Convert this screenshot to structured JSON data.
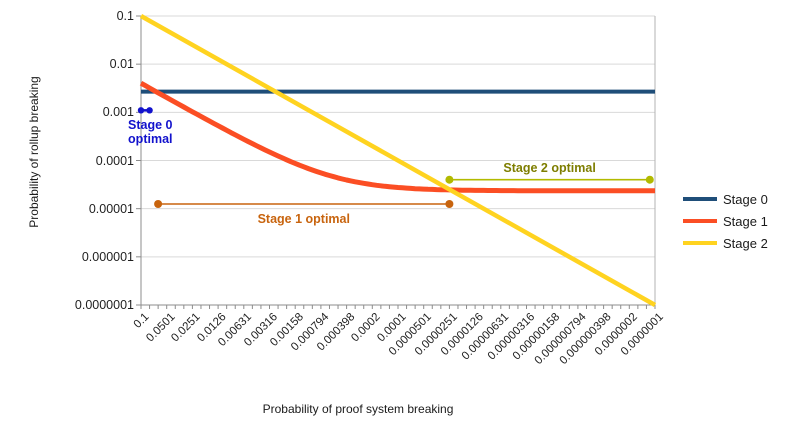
{
  "chart_data": {
    "type": "line",
    "x_scale": "log",
    "y_scale": "log",
    "grid": "horizontal",
    "legend_position": "right-middle",
    "x_axis": {
      "title": "Probability of proof system breaking",
      "range": [
        0.1,
        1e-07
      ],
      "tick_labels": [
        "0.1",
        "0.0501",
        "0.0251",
        "0.0126",
        "0.00631",
        "0.00316",
        "0.00158",
        "0.000794",
        "0.000398",
        "0.0002",
        "0.0001",
        "0.0000501",
        "0.0000251",
        "0.0000126",
        "0.00000631",
        "0.00000316",
        "0.00000158",
        "0.000000794",
        "0.000000398",
        "0.0000002",
        "0.0000001"
      ],
      "minor_ticks_per_label": 3
    },
    "y_axis": {
      "title": "Probability of rollup breaking",
      "range": [
        0.1,
        1e-07
      ],
      "tick_labels": [
        "0.1",
        "0.01",
        "0.001",
        "0.0001",
        "0.00001",
        "0.000001",
        "0.0000001"
      ]
    },
    "x_values": [
      0.1,
      0.0501,
      0.0251,
      0.0126,
      0.00631,
      0.00316,
      0.00158,
      0.000794,
      0.000398,
      0.0002,
      0.0001,
      5.01e-05,
      2.51e-05,
      1.26e-05,
      6.31e-06,
      3.16e-06,
      1.58e-06,
      7.94e-07,
      3.98e-07,
      2e-07,
      1e-07
    ],
    "series": [
      {
        "name": "Stage 0",
        "color": "#1F4E79",
        "model": "constant",
        "value": 0.0027,
        "y_values": [
          0.0027,
          0.0027,
          0.0027,
          0.0027,
          0.0027,
          0.0027,
          0.0027,
          0.0027,
          0.0027,
          0.0027,
          0.0027,
          0.0027,
          0.0027,
          0.0027,
          0.0027,
          0.0027,
          0.0027,
          0.0027,
          0.0027,
          0.0027,
          0.0027
        ]
      },
      {
        "name": "Stage 1",
        "color": "#FB4E24",
        "model": "linear_plus_floor",
        "slope": 0.04,
        "floor": 2.35e-05,
        "y_values": [
          0.004024,
          0.002028,
          0.001028,
          0.000528,
          0.000276,
          0.00015,
          8.67e-05,
          5.53e-05,
          3.94e-05,
          3.15e-05,
          2.75e-05,
          2.55e-05,
          2.45e-05,
          2.4e-05,
          2.38e-05,
          2.36e-05,
          2.36e-05,
          2.35e-05,
          2.35e-05,
          2.35e-05,
          2.35e-05
        ]
      },
      {
        "name": "Stage 2",
        "color": "#FFD320",
        "model": "identity",
        "y_values": [
          0.1,
          0.0501,
          0.0251,
          0.0126,
          0.00631,
          0.00316,
          0.00158,
          0.000794,
          0.000398,
          0.0002,
          0.0001,
          5.01e-05,
          2.51e-05,
          1.26e-05,
          6.31e-06,
          3.16e-06,
          1.58e-06,
          7.94e-07,
          3.98e-07,
          2e-07,
          1e-07
        ]
      }
    ],
    "annotations": [
      {
        "label": "Stage 0 optimal",
        "label_lines": [
          "Stage 0",
          "optimal"
        ],
        "color": "#1212CC",
        "x_start": 0.1,
        "x_end": 0.0794,
        "y": 0.0011,
        "label_side": "below",
        "label_dx": 5
      },
      {
        "label": "Stage 1 optimal",
        "color": "#C8640E",
        "x_start": 0.0631,
        "x_end": 2.51e-05,
        "y": 1.25e-05,
        "label_side": "below",
        "label_dx": 0
      },
      {
        "label": "Stage 2 optimal",
        "color": "#7E7E00",
        "line_color": "#B2BA00",
        "x_start": 2.51e-05,
        "x_end": 1.15e-07,
        "y": 4e-05,
        "label_side": "above",
        "label_dx": 0
      }
    ]
  }
}
